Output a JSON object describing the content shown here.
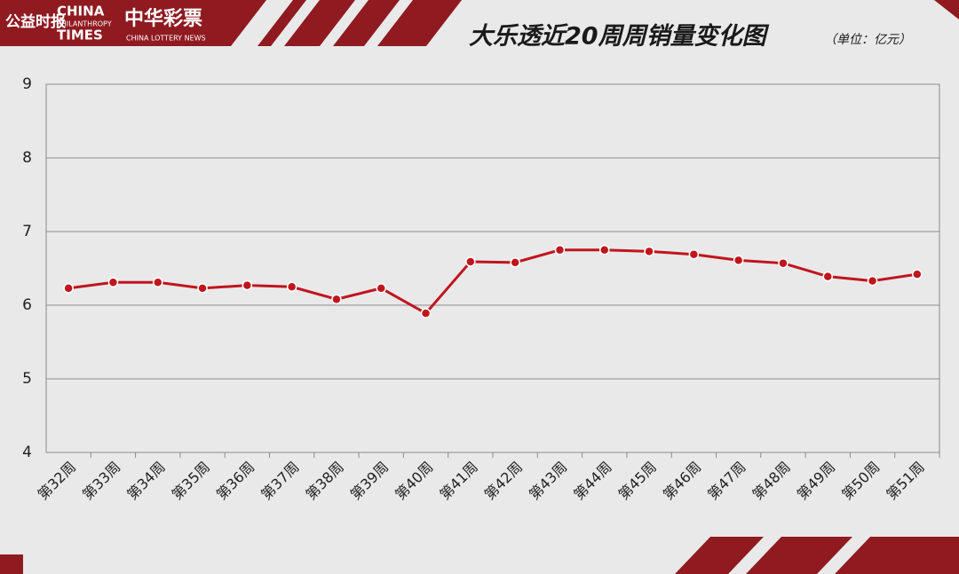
{
  "logos": {
    "cn_times_mark": "公益时报",
    "cn_times_1": "CHINA",
    "cn_times_2": "PHILANTHROPY",
    "cn_times_3": "TIMES",
    "lottery_cn": "中华彩票",
    "lottery_en": "CHINA LOTTERY NEWS"
  },
  "chart_data": {
    "type": "line",
    "title": "大乐透近20周周销量变化图",
    "subtitle": "（单位：亿元）",
    "categories": [
      "第32周",
      "第33周",
      "第34周",
      "第35周",
      "第36周",
      "第37周",
      "第38周",
      "第39周",
      "第40周",
      "第41周",
      "第42周",
      "第43周",
      "第44周",
      "第45周",
      "第46周",
      "第47周",
      "第48周",
      "第49周",
      "第50周",
      "第51周"
    ],
    "values": [
      6.23,
      6.31,
      6.31,
      6.23,
      6.27,
      6.25,
      6.08,
      6.23,
      5.89,
      6.59,
      6.58,
      6.75,
      6.75,
      6.73,
      6.69,
      6.61,
      6.57,
      6.39,
      6.33,
      6.42
    ],
    "color": "#c0151d",
    "ylim": [
      4,
      9
    ],
    "yticks": [
      4,
      5,
      6,
      7,
      8,
      9
    ],
    "grid": true
  }
}
